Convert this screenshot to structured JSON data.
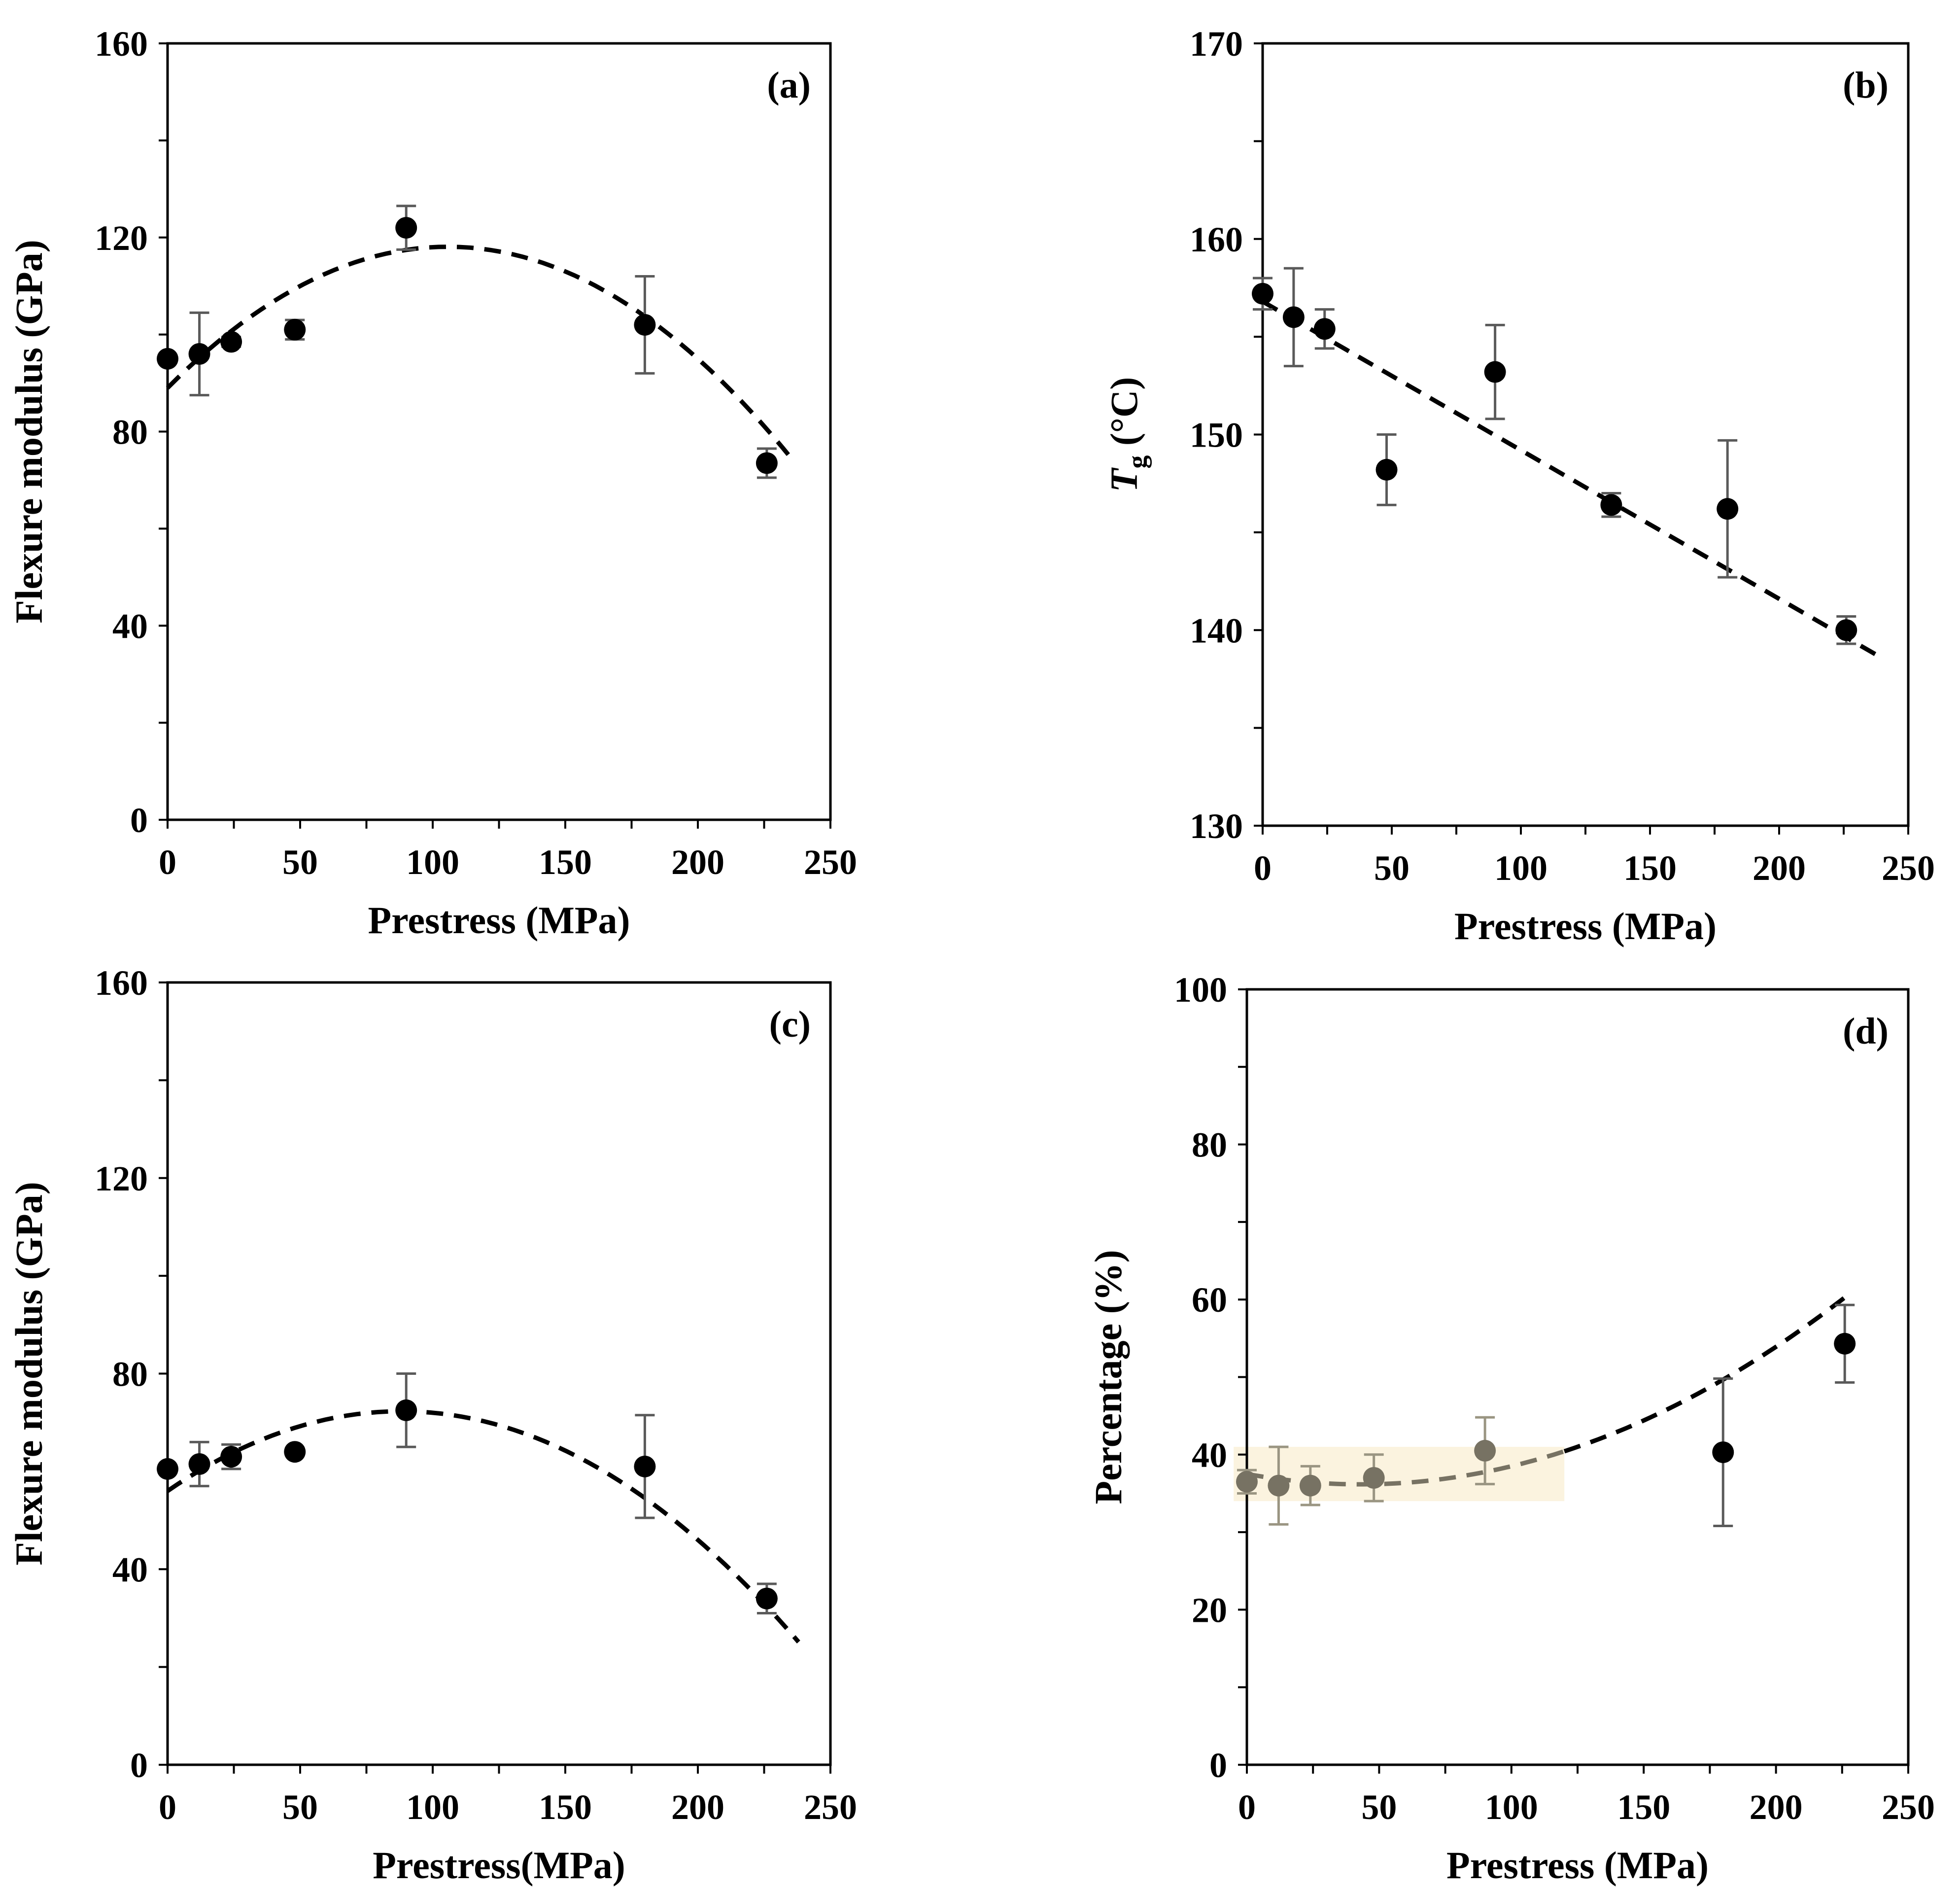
{
  "chart_data": [
    {
      "id": "a",
      "type": "scatter",
      "panel_label": "(a)",
      "xlabel": "Prestress (MPa)",
      "ylabel": "Flexure modulus (GPa)",
      "xlim": [
        0,
        250
      ],
      "ylim": [
        0,
        160
      ],
      "xticks": [
        0,
        50,
        100,
        150,
        200,
        250
      ],
      "yticks": [
        0,
        40,
        80,
        120,
        160
      ],
      "tick_labels_x": [
        "0",
        "50",
        "100",
        "150",
        "200",
        "250"
      ],
      "tick_labels_y": [
        "0",
        "40",
        "80",
        "120",
        "160"
      ],
      "points": [
        {
          "x": 0,
          "y": 95,
          "err": 0
        },
        {
          "x": 12,
          "y": 96,
          "err": 8.5
        },
        {
          "x": 24,
          "y": 98.5,
          "err": 1
        },
        {
          "x": 48,
          "y": 101,
          "err": 2
        },
        {
          "x": 90,
          "y": 122,
          "err": 4.5
        },
        {
          "x": 180,
          "y": 102,
          "err": 10
        },
        {
          "x": 226,
          "y": 73.5,
          "err": 3
        }
      ],
      "fit": {
        "kind": "quadratic",
        "a": -0.0026,
        "b": 0.55,
        "c": 89,
        "x_range": [
          0,
          236
        ],
        "color": "#000000"
      }
    },
    {
      "id": "b",
      "type": "scatter",
      "panel_label": "(b)",
      "xlabel": "Prestress (MPa)",
      "ylabel": "T",
      "ylabel_sub": "g",
      "ylabel_unit": " (°C)",
      "xlim": [
        0,
        250
      ],
      "ylim": [
        130,
        170
      ],
      "xticks": [
        0,
        50,
        100,
        150,
        200,
        250
      ],
      "yticks": [
        130,
        140,
        150,
        160,
        170
      ],
      "tick_labels_x": [
        "0",
        "50",
        "100",
        "150",
        "200",
        "250"
      ],
      "tick_labels_y": [
        "130",
        "140",
        "150",
        "160",
        "170"
      ],
      "points": [
        {
          "x": 0,
          "y": 157.2,
          "err": 0.8
        },
        {
          "x": 12,
          "y": 156,
          "err": 2.5
        },
        {
          "x": 24,
          "y": 155.4,
          "err": 1
        },
        {
          "x": 48,
          "y": 148.2,
          "err": 1.8
        },
        {
          "x": 90,
          "y": 153.2,
          "err": 2.4
        },
        {
          "x": 135,
          "y": 146.4,
          "err": 0.6
        },
        {
          "x": 180,
          "y": 146.2,
          "err": 3.5
        },
        {
          "x": 226,
          "y": 140,
          "err": 0.7
        }
      ],
      "fit": {
        "kind": "linear",
        "a": 0,
        "b": -0.076,
        "c": 156.8,
        "x_range": [
          0,
          240
        ],
        "color": "#000000"
      }
    },
    {
      "id": "c",
      "type": "scatter",
      "panel_label": "(c)",
      "xlabel": "Prestress(MPa)",
      "ylabel": "Flexure modulus (GPa)",
      "xlim": [
        0,
        250
      ],
      "ylim": [
        0,
        160
      ],
      "xticks": [
        0,
        50,
        100,
        150,
        200,
        250
      ],
      "yticks": [
        0,
        40,
        80,
        120,
        160
      ],
      "tick_labels_x": [
        "0",
        "50",
        "100",
        "150",
        "200",
        "250"
      ],
      "tick_labels_y": [
        "0",
        "40",
        "80",
        "120",
        "160"
      ],
      "points": [
        {
          "x": 0,
          "y": 60.5,
          "err": 0
        },
        {
          "x": 12,
          "y": 61.5,
          "err": 4.5
        },
        {
          "x": 24,
          "y": 63,
          "err": 2.5
        },
        {
          "x": 48,
          "y": 64,
          "err": 0
        },
        {
          "x": 90,
          "y": 72.5,
          "err": 7.5
        },
        {
          "x": 180,
          "y": 61,
          "err": 10.5
        },
        {
          "x": 226,
          "y": 34,
          "err": 3
        }
      ],
      "fit": {
        "kind": "quadratic",
        "a": -0.0021,
        "b": 0.37,
        "c": 56,
        "x_range": [
          0,
          238
        ],
        "color": "#000000"
      }
    },
    {
      "id": "d",
      "type": "scatter",
      "panel_label": "(d)",
      "xlabel": "Prestress (MPa)",
      "ylabel": "Percentage (%)",
      "xlim": [
        0,
        250
      ],
      "ylim": [
        0,
        100
      ],
      "xticks": [
        0,
        50,
        100,
        150,
        200,
        250
      ],
      "yticks": [
        0,
        20,
        40,
        60,
        80,
        100
      ],
      "tick_labels_x": [
        "0",
        "50",
        "100",
        "150",
        "200",
        "250"
      ],
      "tick_labels_y": [
        "0",
        "20",
        "40",
        "60",
        "80",
        "100"
      ],
      "highlight_region": {
        "x0": -5,
        "x1": 120,
        "y0": 34,
        "y1": 41,
        "color": "#fbf3df"
      },
      "points": [
        {
          "x": 0,
          "y": 36.5,
          "err": 1.5,
          "color": "#777263"
        },
        {
          "x": 12,
          "y": 36,
          "err": 5,
          "color": "#777263"
        },
        {
          "x": 24,
          "y": 36,
          "err": 2.5,
          "color": "#777263"
        },
        {
          "x": 48,
          "y": 37,
          "err": 3,
          "color": "#777263"
        },
        {
          "x": 90,
          "y": 40.5,
          "err": 4.3,
          "color": "#777263"
        },
        {
          "x": 180,
          "y": 40.3,
          "err": 9.5,
          "color": "#000000"
        },
        {
          "x": 226,
          "y": 54.3,
          "err": 5,
          "color": "#000000"
        }
      ],
      "fit": {
        "kind": "quadratic",
        "a": 0.00072,
        "b": -0.062,
        "c": 37.5,
        "x_range": [
          0,
          228
        ],
        "split_x": 120,
        "color": "#000000",
        "color_before_split": "#777263"
      }
    }
  ]
}
